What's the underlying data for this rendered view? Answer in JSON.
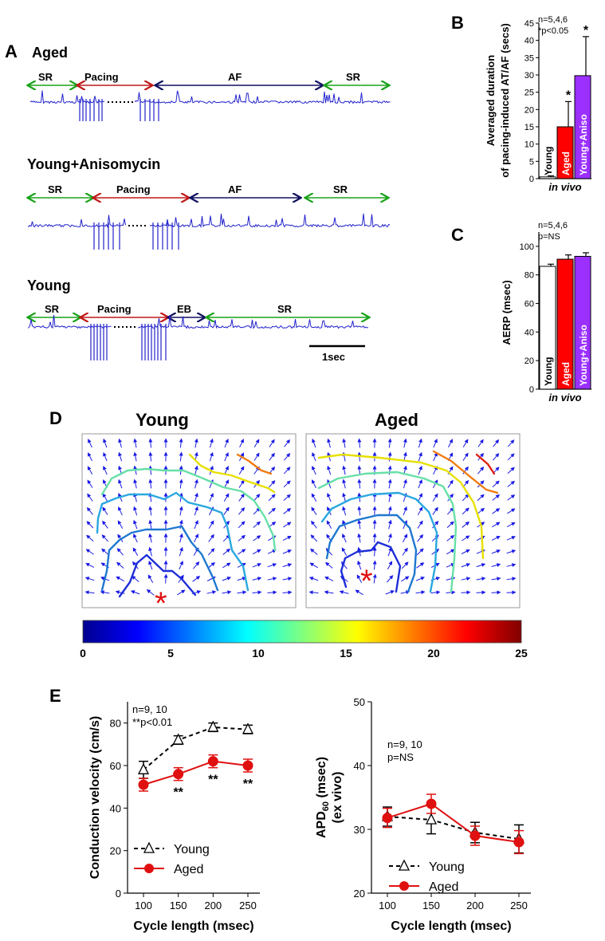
{
  "panel_labels": {
    "A": "A",
    "B": "B",
    "C": "C",
    "D": "D",
    "E": "E"
  },
  "panelA": {
    "traces": [
      {
        "title": "Aged",
        "segments": [
          "SR",
          "Pacing",
          "AF",
          "SR"
        ]
      },
      {
        "title": "Young+Anisomycin",
        "segments": [
          "SR",
          "Pacing",
          "AF",
          "SR"
        ]
      },
      {
        "title": "Young",
        "segments": [
          "SR",
          "Pacing",
          "EB",
          "SR"
        ]
      }
    ],
    "scalebar": "1sec"
  },
  "panelD": {
    "titles": [
      "Young",
      "Aged"
    ]
  },
  "colors": {
    "young_bar": "#ffffff",
    "aged": "#ff0000",
    "aniso": "#9b30ff",
    "trace": "#2222cc",
    "sr": "#1aa31a",
    "pacing": "#c01818",
    "af": "#101060",
    "vector": "#1a1ae6"
  },
  "chart_data": [
    {
      "id": "B",
      "type": "bar",
      "ylabel_lines": [
        "Averaged duration",
        "of pacing-induced AT/AF (secs)"
      ],
      "xlabel": "in vivo",
      "annotation": [
        "n=5,4,6",
        "*p<0.05"
      ],
      "categories": [
        "Young",
        "Aged",
        "Young+Aniso"
      ],
      "values": [
        0.5,
        15,
        29.8
      ],
      "errors": [
        0.3,
        7.3,
        11.3
      ],
      "sig": [
        "",
        "*",
        "*"
      ],
      "ylim": [
        0,
        45
      ],
      "yticks": [
        0,
        5,
        10,
        15,
        20,
        25,
        30,
        35,
        40,
        45
      ]
    },
    {
      "id": "C",
      "type": "bar",
      "ylabel": "AERP (msec)",
      "xlabel": "in vivo",
      "annotation": [
        "n=5,4,6",
        "p=NS"
      ],
      "categories": [
        "Young",
        "Aged",
        "Young+Aniso"
      ],
      "values": [
        86,
        91,
        93
      ],
      "errors": [
        1.5,
        3,
        2.5
      ],
      "ylim": [
        0,
        110
      ],
      "yticks": [
        0,
        20,
        40,
        60,
        80,
        100
      ]
    },
    {
      "id": "D_colorbar",
      "type": "heatmap",
      "range": [
        0,
        25
      ],
      "ticks": [
        "0",
        "5",
        "10",
        "15",
        "20",
        "25"
      ]
    },
    {
      "id": "E1",
      "type": "line",
      "xlabel": "Cycle length (msec)",
      "ylabel": "Conduction velocity (cm/s)",
      "annotation": [
        "n=9, 10",
        "**p<0.01"
      ],
      "x": [
        100,
        150,
        200,
        250
      ],
      "xticks": [
        "100",
        "150",
        "200",
        "250"
      ],
      "yticks": [
        "0",
        "20",
        "40",
        "60",
        "80"
      ],
      "ylim": [
        0,
        90
      ],
      "series": [
        {
          "name": "Young",
          "values": [
            58,
            72,
            78,
            77
          ],
          "errors": [
            4,
            2,
            2,
            2
          ]
        },
        {
          "name": "Aged",
          "values": [
            51,
            56,
            62,
            60
          ],
          "errors": [
            3,
            3,
            3,
            3
          ]
        }
      ],
      "sig": [
        "",
        "**",
        "**",
        "**"
      ]
    },
    {
      "id": "E2",
      "type": "line",
      "xlabel": "Cycle length (msec)",
      "ylabel_main": "APD",
      "ylabel_sub": "60",
      "ylabel_rest": " (msec)",
      "ylabel_line2": "(ex vivo)",
      "annotation": [
        "n=9, 10",
        "p=NS"
      ],
      "x": [
        100,
        150,
        200,
        250
      ],
      "xticks": [
        "100",
        "150",
        "200",
        "250"
      ],
      "yticks": [
        "20",
        "30",
        "40",
        "50"
      ],
      "ylim": [
        20,
        50
      ],
      "series": [
        {
          "name": "Young",
          "values": [
            32,
            31.5,
            29.5,
            28.5
          ],
          "errors": [
            1.5,
            2.2,
            1.6,
            2.2
          ]
        },
        {
          "name": "Aged",
          "values": [
            31.8,
            34,
            29,
            28
          ],
          "errors": [
            1.5,
            1.5,
            1.5,
            1.8
          ]
        }
      ]
    }
  ]
}
